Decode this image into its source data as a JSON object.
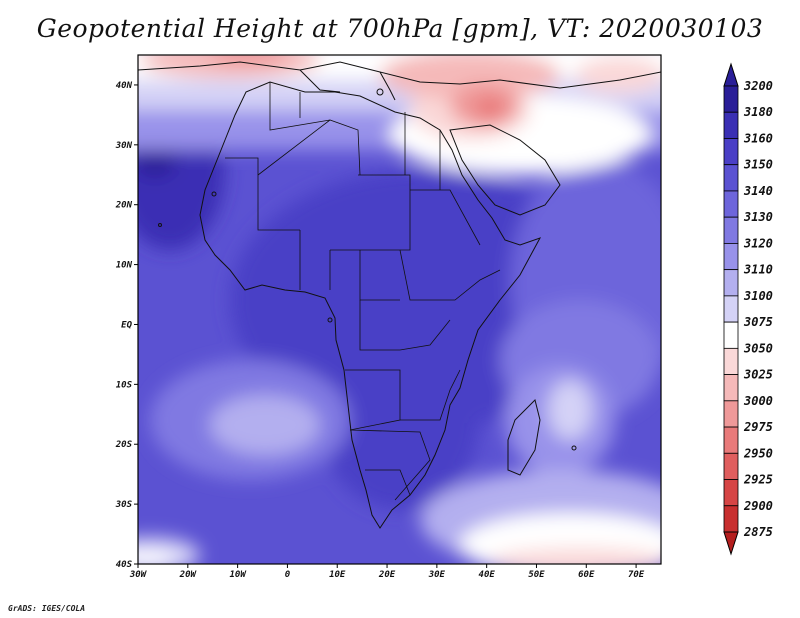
{
  "title": "Geopotential Height at 700hPa [gpm], VT: 2020030103",
  "footer": "GrADS: IGES/COLA",
  "map": {
    "lon_range": [
      -30,
      75
    ],
    "lat_range": [
      -40,
      45
    ],
    "x_ticks": [
      "30W",
      "20W",
      "10W",
      "0",
      "10E",
      "20E",
      "30E",
      "40E",
      "50E",
      "60E",
      "70E"
    ],
    "y_ticks": [
      "40S",
      "30S",
      "20S",
      "10S",
      "EQ",
      "10N",
      "20N",
      "30N",
      "40N"
    ]
  },
  "colorbar": {
    "levels": [
      "3200",
      "3180",
      "3160",
      "3150",
      "3140",
      "3130",
      "3120",
      "3110",
      "3100",
      "3075",
      "3050",
      "3025",
      "3000",
      "2975",
      "2950",
      "2925",
      "2900",
      "2875"
    ],
    "colors": [
      "#2a1e98",
      "#3a2fb4",
      "#4a3fc6",
      "#5b52d2",
      "#6d65db",
      "#8079e2",
      "#9892ea",
      "#b3afef",
      "#d4d2f6",
      "#ffffff",
      "#fad8d8",
      "#f5b9b9",
      "#ef9999",
      "#e97a7a",
      "#e05e5e",
      "#d64545",
      "#c82f2f",
      "#b41e1e"
    ]
  }
}
